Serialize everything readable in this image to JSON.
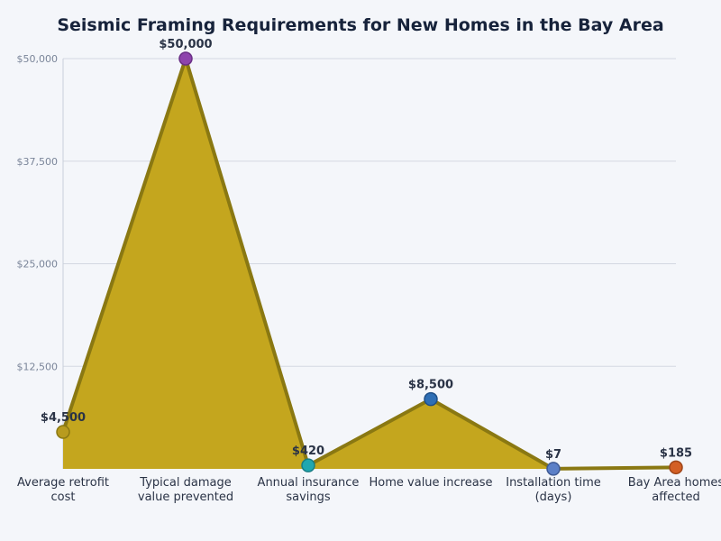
{
  "chart_data": {
    "type": "area",
    "title": "Seismic Framing Requirements for New Homes in the Bay Area",
    "xlabel": "",
    "ylabel": "",
    "categories": [
      [
        "Average retrofit",
        "cost"
      ],
      [
        "Typical damage",
        "value prevented"
      ],
      [
        "Annual insurance",
        "savings"
      ],
      [
        "Home value increase"
      ],
      [
        "Installation time",
        "(days)"
      ],
      [
        "Bay Area homes",
        "affected"
      ]
    ],
    "values": [
      4500,
      50000,
      420,
      8500,
      7,
      185
    ],
    "data_labels": [
      "$4,500",
      "$50,000",
      "$420",
      "$8,500",
      "$7",
      "$185"
    ],
    "ylim": [
      0,
      50000
    ],
    "yticks": [
      12500,
      25000,
      37500,
      50000
    ],
    "ytick_labels": [
      "$12,500",
      "$25,000",
      "$37,500",
      "$50,000"
    ],
    "grid": true,
    "colors": {
      "area_fill": "#c4a61e",
      "line": "#8a7812",
      "markers": [
        "#b89b1e",
        "#8e44ad",
        "#20a7b0",
        "#2f6fb5",
        "#5b7fc7",
        "#d35f25"
      ],
      "marker_strokes": [
        "#8a7812",
        "#6a2f86",
        "#187d84",
        "#1f4f87",
        "#3f5a94",
        "#9e4519"
      ]
    }
  }
}
